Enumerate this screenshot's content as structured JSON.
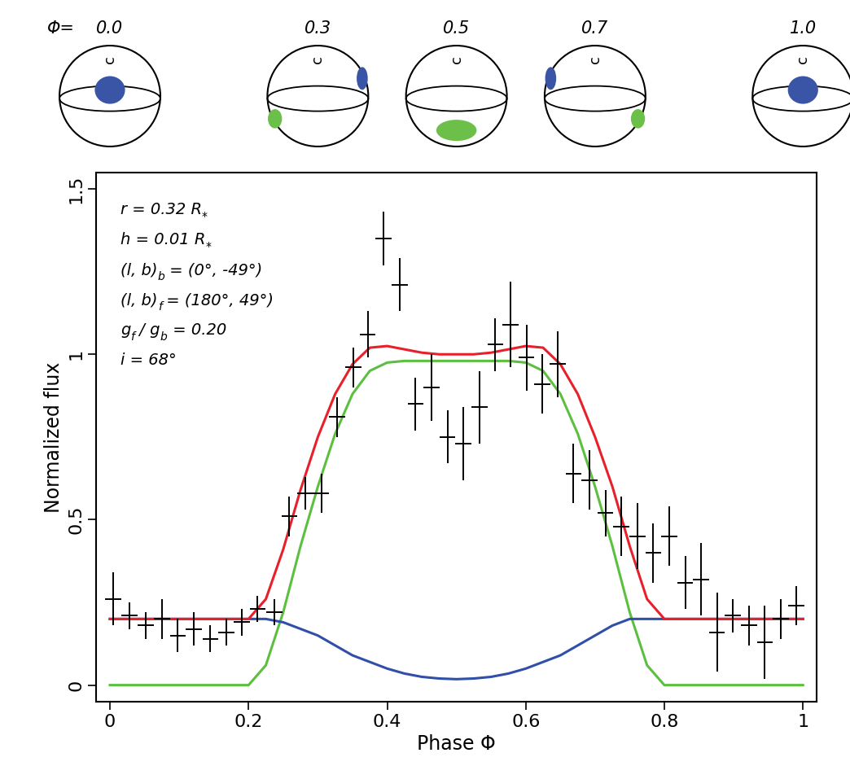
{
  "chart_data": {
    "type": "errorbar",
    "xlabel": "Phase Φ",
    "ylabel": "Normalized flux",
    "xlim": [
      -0.02,
      1.02
    ],
    "ylim": [
      -0.05,
      1.55
    ],
    "xticks": [
      0,
      0.2,
      0.4,
      0.6,
      0.8,
      1
    ],
    "yticks": [
      0,
      0.5,
      1,
      1.5
    ],
    "phase_label": "Φ=",
    "phases": [
      {
        "value": 0.0,
        "label": "0.0"
      },
      {
        "value": 0.3,
        "label": "0.3"
      },
      {
        "value": 0.5,
        "label": "0.5"
      },
      {
        "value": 0.7,
        "label": "0.7"
      },
      {
        "value": 1.0,
        "label": "1.0"
      }
    ],
    "sphere_label": "c",
    "annotations": [
      [
        {
          "text": "r = 0.32 R"
        },
        {
          "text": "*",
          "sub": true
        }
      ],
      [
        {
          "text": "h = 0.01 R"
        },
        {
          "text": "*",
          "sub": true
        }
      ],
      [
        {
          "text": "(l, b)"
        },
        {
          "text": "b",
          "sub": true
        },
        {
          "text": " = (0°, -49°)"
        }
      ],
      [
        {
          "text": "(l, b)"
        },
        {
          "text": "f",
          "sub": true
        },
        {
          "text": " = (180°, 49°)"
        }
      ],
      [
        {
          "text": "g"
        },
        {
          "text": "f",
          "sub": true
        },
        {
          "text": " / g"
        },
        {
          "text": "b",
          "sub": true
        },
        {
          "text": " = 0.20"
        }
      ],
      [
        {
          "text": "i = 68°"
        }
      ]
    ],
    "series": [
      {
        "type": "line",
        "color": "#5cbf3f",
        "x": [
          0,
          0.025,
          0.05,
          0.075,
          0.1,
          0.125,
          0.15,
          0.175,
          0.2,
          0.225,
          0.25,
          0.275,
          0.3,
          0.325,
          0.35,
          0.375,
          0.4,
          0.425,
          0.45,
          0.475,
          0.5,
          0.525,
          0.55,
          0.575,
          0.6,
          0.625,
          0.65,
          0.675,
          0.7,
          0.725,
          0.75,
          0.775,
          0.8,
          0.825,
          0.85,
          0.875,
          0.9,
          0.925,
          0.95,
          0.975,
          1.0
        ],
        "values": [
          0,
          0,
          0,
          0,
          0,
          0,
          0,
          0,
          0,
          0.06,
          0.22,
          0.42,
          0.6,
          0.76,
          0.88,
          0.95,
          0.975,
          0.98,
          0.98,
          0.98,
          0.98,
          0.98,
          0.98,
          0.98,
          0.975,
          0.95,
          0.88,
          0.76,
          0.6,
          0.42,
          0.22,
          0.06,
          0,
          0,
          0,
          0,
          0,
          0,
          0,
          0,
          0
        ]
      },
      {
        "type": "line",
        "color": "#2f4fa8",
        "x": [
          0,
          0.025,
          0.05,
          0.075,
          0.1,
          0.125,
          0.15,
          0.175,
          0.2,
          0.225,
          0.25,
          0.275,
          0.3,
          0.325,
          0.35,
          0.375,
          0.4,
          0.425,
          0.45,
          0.475,
          0.5,
          0.525,
          0.55,
          0.575,
          0.6,
          0.625,
          0.65,
          0.675,
          0.7,
          0.725,
          0.75,
          0.775,
          0.8,
          0.825,
          0.85,
          0.875,
          0.9,
          0.925,
          0.95,
          0.975,
          1.0
        ],
        "values": [
          0.2,
          0.2,
          0.2,
          0.2,
          0.2,
          0.2,
          0.2,
          0.2,
          0.2,
          0.2,
          0.19,
          0.17,
          0.15,
          0.12,
          0.09,
          0.07,
          0.05,
          0.035,
          0.025,
          0.02,
          0.018,
          0.02,
          0.025,
          0.035,
          0.05,
          0.07,
          0.09,
          0.12,
          0.15,
          0.18,
          0.2,
          0.2,
          0.2,
          0.2,
          0.2,
          0.2,
          0.2,
          0.2,
          0.2,
          0.2,
          0.2
        ]
      },
      {
        "type": "line",
        "color": "#e8202a",
        "x": [
          0,
          0.025,
          0.05,
          0.075,
          0.1,
          0.125,
          0.15,
          0.175,
          0.2,
          0.225,
          0.25,
          0.275,
          0.3,
          0.325,
          0.35,
          0.375,
          0.4,
          0.425,
          0.45,
          0.475,
          0.5,
          0.525,
          0.55,
          0.575,
          0.6,
          0.625,
          0.65,
          0.675,
          0.7,
          0.725,
          0.75,
          0.775,
          0.8,
          0.825,
          0.85,
          0.875,
          0.9,
          0.925,
          0.95,
          0.975,
          1.0
        ],
        "values": [
          0.2,
          0.2,
          0.2,
          0.2,
          0.2,
          0.2,
          0.2,
          0.2,
          0.2,
          0.26,
          0.41,
          0.59,
          0.75,
          0.88,
          0.97,
          1.02,
          1.025,
          1.015,
          1.005,
          1.0,
          1.0,
          1.0,
          1.005,
          1.015,
          1.025,
          1.02,
          0.97,
          0.88,
          0.75,
          0.6,
          0.42,
          0.26,
          0.2,
          0.2,
          0.2,
          0.2,
          0.2,
          0.2,
          0.2,
          0.2,
          0.2
        ]
      },
      {
        "type": "errorbar",
        "color": "#000000",
        "x": [
          0.005,
          0.028,
          0.052,
          0.075,
          0.098,
          0.121,
          0.145,
          0.168,
          0.19,
          0.213,
          0.237,
          0.259,
          0.282,
          0.305,
          0.328,
          0.351,
          0.372,
          0.395,
          0.418,
          0.441,
          0.464,
          0.487,
          0.51,
          0.533,
          0.556,
          0.578,
          0.601,
          0.624,
          0.646,
          0.669,
          0.692,
          0.715,
          0.738,
          0.761,
          0.784,
          0.807,
          0.83,
          0.853,
          0.876,
          0.899,
          0.922,
          0.945,
          0.968,
          0.99
        ],
        "values": [
          0.26,
          0.21,
          0.18,
          0.2,
          0.15,
          0.17,
          0.14,
          0.16,
          0.19,
          0.23,
          0.22,
          0.51,
          0.58,
          0.58,
          0.81,
          0.96,
          1.06,
          1.35,
          1.21,
          0.85,
          0.9,
          0.75,
          0.73,
          0.84,
          1.03,
          1.09,
          0.99,
          0.91,
          0.97,
          0.64,
          0.62,
          0.52,
          0.48,
          0.45,
          0.4,
          0.45,
          0.31,
          0.32,
          0.16,
          0.21,
          0.18,
          0.13,
          0.2,
          0.24
        ],
        "yerr": [
          0.08,
          0.04,
          0.04,
          0.06,
          0.05,
          0.05,
          0.04,
          0.04,
          0.04,
          0.04,
          0.04,
          0.06,
          0.05,
          0.06,
          0.06,
          0.06,
          0.07,
          0.08,
          0.08,
          0.08,
          0.1,
          0.08,
          0.11,
          0.11,
          0.08,
          0.13,
          0.1,
          0.09,
          0.1,
          0.09,
          0.09,
          0.07,
          0.09,
          0.1,
          0.09,
          0.09,
          0.08,
          0.11,
          0.12,
          0.05,
          0.06,
          0.11,
          0.06,
          0.06
        ],
        "xerr": 0.0115
      }
    ]
  }
}
